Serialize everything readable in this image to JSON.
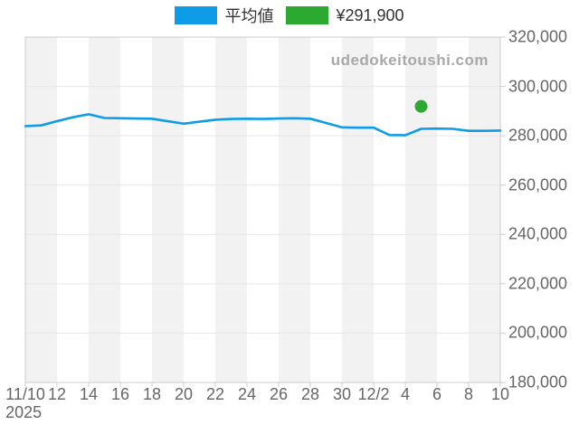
{
  "legend": {
    "items": [
      {
        "label": "平均値",
        "color": "#0e9ce8"
      },
      {
        "label": "¥291,900",
        "color": "#2ca930"
      }
    ]
  },
  "watermark": {
    "text": "udedokeitoushi.com",
    "color": "#a8a8a8"
  },
  "chart_data": {
    "type": "line",
    "title": "",
    "xlabel": "",
    "ylabel": "",
    "x": [
      "11/10",
      "11/11",
      "11/12",
      "11/13",
      "11/14",
      "11/15",
      "11/16",
      "11/17",
      "11/18",
      "11/19",
      "11/20",
      "11/21",
      "11/22",
      "11/23",
      "11/24",
      "11/25",
      "11/26",
      "11/27",
      "11/28",
      "11/29",
      "11/30",
      "12/1",
      "12/2",
      "12/3",
      "12/4",
      "12/5",
      "12/6",
      "12/7",
      "12/8",
      "12/9",
      "12/10"
    ],
    "x_tick_every": 2,
    "x_tick_labels": [
      "11/10",
      "12",
      "14",
      "16",
      "18",
      "20",
      "22",
      "24",
      "26",
      "28",
      "30",
      "12/2",
      "4",
      "6",
      "8",
      "10"
    ],
    "x_first_tick_sublabel": "2025",
    "series": [
      {
        "name": "平均値",
        "type": "line",
        "color": "#0e9ce8",
        "values": [
          283900,
          284200,
          285900,
          287500,
          288700,
          287200,
          287100,
          287000,
          286900,
          285900,
          284900,
          285700,
          286500,
          286800,
          286900,
          286800,
          287000,
          287100,
          286900,
          285200,
          283400,
          283300,
          283300,
          280300,
          280200,
          282800,
          282900,
          282800,
          282000,
          282000,
          282100
        ]
      },
      {
        "name": "¥291,900",
        "type": "scatter",
        "color": "#2ca930",
        "points": [
          {
            "x": "12/5",
            "y": 291900
          }
        ]
      }
    ],
    "ylim": [
      180000,
      320000
    ],
    "y_ticks": [
      {
        "value": 180000,
        "label": "180,000"
      },
      {
        "value": 200000,
        "label": "200,000"
      },
      {
        "value": 220000,
        "label": "220,000"
      },
      {
        "value": 240000,
        "label": "240,000"
      },
      {
        "value": 260000,
        "label": "260,000"
      },
      {
        "value": 280000,
        "label": "280,000"
      },
      {
        "value": 300000,
        "label": "300,000"
      },
      {
        "value": 320000,
        "label": "320,000"
      }
    ],
    "grid": true,
    "legend_position": "top",
    "y_axis_side": "right",
    "alternate_band_color": "#f2f2f2",
    "gridline_color": "#e6e6e6",
    "plot_border_color": "#cccccc",
    "axis_label_color": "#666666"
  }
}
